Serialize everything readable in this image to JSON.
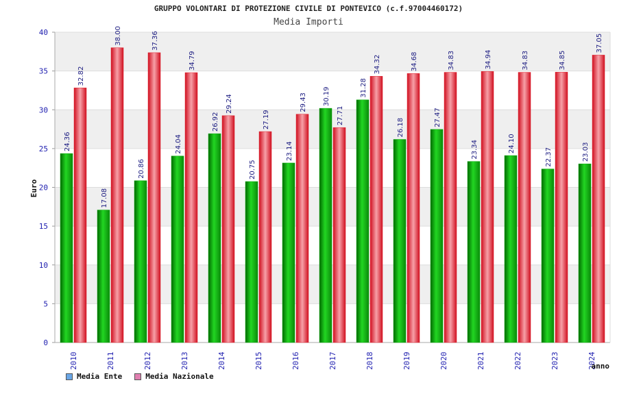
{
  "header": {
    "title": "GRUPPO VOLONTARI DI PROTEZIONE CIVILE DI PONTEVICO (c.f.97004460172)",
    "subtitle": "Media Importi"
  },
  "legend": {
    "items": [
      {
        "label": "Media Ente",
        "color": "#6aa6e6"
      },
      {
        "label": "Media Nazionale",
        "color": "#e07fb0"
      }
    ]
  },
  "colors": {
    "ente_bar": "#0aa80a",
    "nazionale_bar": "#e0202c",
    "value_label": "#1a1a80",
    "tick_label": "#2020b0",
    "band": "#efefef"
  },
  "chart_data": {
    "type": "bar",
    "title": "GRUPPO VOLONTARI DI PROTEZIONE CIVILE DI PONTEVICO (c.f.97004460172)",
    "subtitle": "Media Importi",
    "xlabel": "anno",
    "ylabel": "Euro",
    "ylim": [
      0,
      40
    ],
    "yticks": [
      0,
      5,
      10,
      15,
      20,
      25,
      30,
      35,
      40
    ],
    "grid": true,
    "legend_position": "bottom-left",
    "categories": [
      "2010",
      "2011",
      "2012",
      "2013",
      "2014",
      "2015",
      "2016",
      "2017",
      "2018",
      "2019",
      "2020",
      "2021",
      "2022",
      "2023",
      "2024"
    ],
    "series": [
      {
        "name": "Media Ente",
        "values": [
          24.36,
          17.08,
          20.86,
          24.04,
          26.92,
          20.75,
          23.14,
          30.19,
          31.28,
          26.18,
          27.47,
          23.34,
          24.1,
          22.37,
          23.03
        ],
        "labels": [
          "24.36",
          "17.08",
          "20.86",
          "24.04",
          "26.92",
          "20.75",
          "23.14",
          "30.19",
          "31.28",
          "26.18",
          "27.47",
          "23.34",
          "24.10",
          "22.37",
          "23.03"
        ]
      },
      {
        "name": "Media Nazionale",
        "values": [
          32.82,
          38.0,
          37.36,
          34.79,
          29.24,
          27.19,
          29.43,
          27.71,
          34.32,
          34.68,
          34.83,
          34.94,
          34.83,
          34.85,
          37.05
        ],
        "labels": [
          "32.82",
          "38.00",
          "37.36",
          "34.79",
          "29.24",
          "27.19",
          "29.43",
          "27.71",
          "34.32",
          "34.68",
          "34.83",
          "34.94",
          "34.83",
          "34.85",
          "37.05"
        ]
      }
    ]
  }
}
